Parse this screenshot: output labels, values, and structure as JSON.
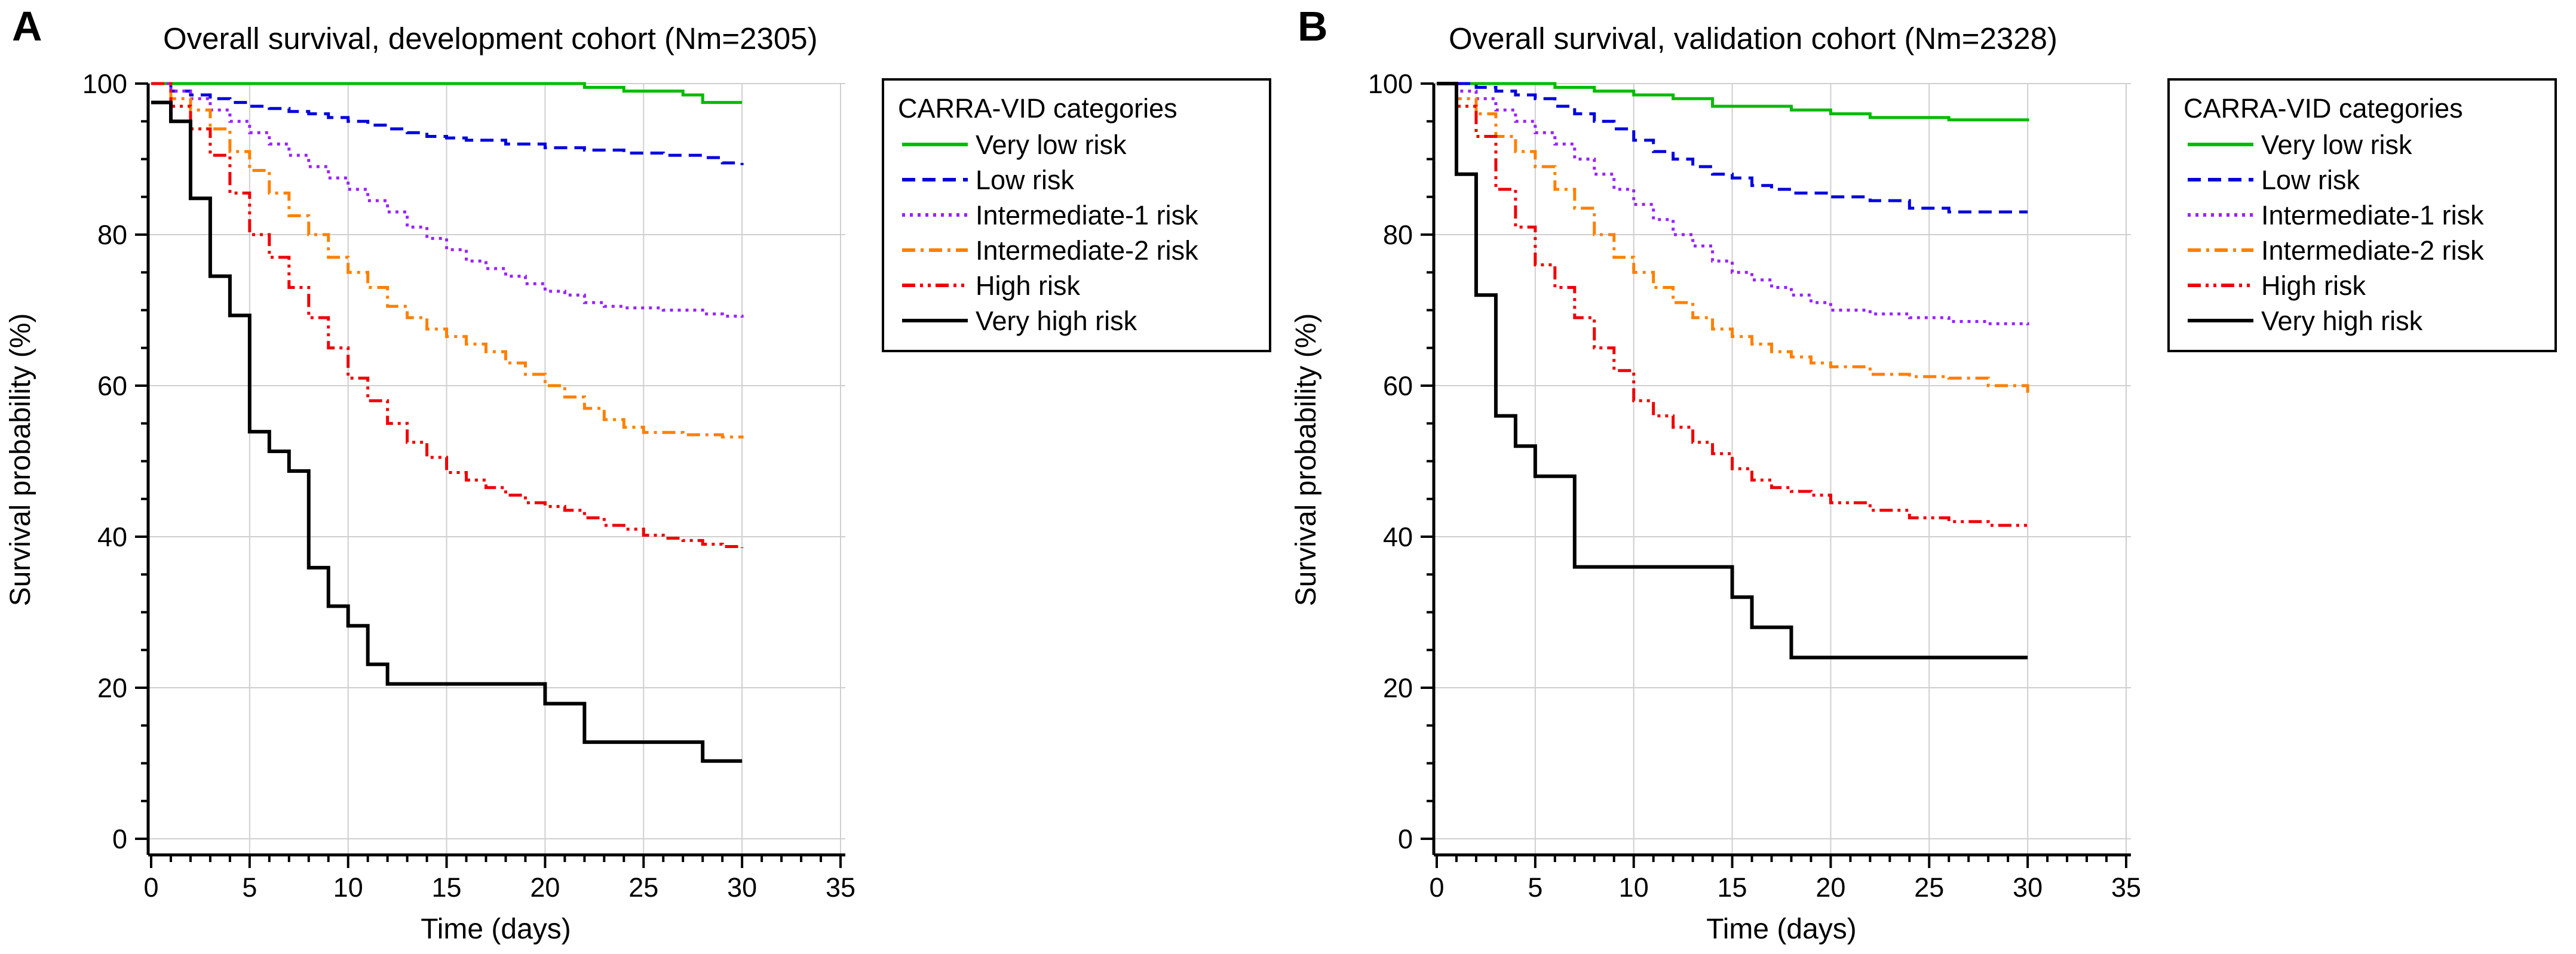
{
  "chart_data": [
    {
      "type": "line",
      "panel_label": "A",
      "title": "Overall survival, development cohort (Nm=2305)",
      "xlabel": "Time (days)",
      "ylabel": "Survival probability (%)",
      "xlim": [
        0,
        35
      ],
      "ylim": [
        0,
        100
      ],
      "xticks": [
        0,
        5,
        10,
        15,
        20,
        25,
        30,
        35
      ],
      "yticks": [
        0,
        20,
        40,
        60,
        80,
        100
      ],
      "grid": true,
      "legend_position": "right",
      "legend_title": "CARRA-VID categories",
      "series": [
        {
          "name": "Very low risk",
          "color": "#00bb00",
          "dash": "solid",
          "x": [
            0,
            21,
            22,
            24,
            27,
            28,
            30
          ],
          "y": [
            100,
            100,
            99.5,
            99,
            98.5,
            97.5,
            97.5
          ]
        },
        {
          "name": "Low risk",
          "color": "#0000dd",
          "dash": "dashed",
          "x": [
            0,
            1,
            2,
            3,
            4,
            5,
            6,
            7,
            8,
            9,
            10,
            11,
            12,
            13,
            14,
            15,
            16,
            18,
            20,
            22,
            24,
            26,
            28,
            29,
            30
          ],
          "y": [
            100,
            99,
            98.5,
            98,
            97.5,
            97,
            96.7,
            96.3,
            96,
            95.5,
            95,
            94.5,
            94,
            93.5,
            93,
            92.8,
            92.5,
            92,
            91.5,
            91.2,
            90.8,
            90.5,
            90.2,
            89.5,
            89.2
          ]
        },
        {
          "name": "Intermediate-1 risk",
          "color": "#9922ff",
          "dash": "dotted",
          "x": [
            0,
            1,
            2,
            3,
            4,
            5,
            6,
            7,
            8,
            9,
            10,
            11,
            12,
            13,
            14,
            15,
            16,
            17,
            18,
            19,
            20,
            21,
            22,
            23,
            24,
            26,
            28,
            29,
            30
          ],
          "y": [
            100,
            99,
            98,
            96.5,
            95,
            93.5,
            92,
            90.5,
            89,
            87.5,
            86,
            84.5,
            83,
            81,
            79.5,
            78,
            76.5,
            75.5,
            74.5,
            73.5,
            72.5,
            72,
            71,
            70.5,
            70.3,
            70,
            69.5,
            69.2,
            69
          ]
        },
        {
          "name": "Intermediate-2 risk",
          "color": "#ff8000",
          "dash": "dashdot",
          "x": [
            0,
            1,
            2,
            3,
            4,
            5,
            6,
            7,
            8,
            9,
            10,
            11,
            12,
            13,
            14,
            15,
            16,
            17,
            18,
            19,
            20,
            21,
            22,
            23,
            24,
            25,
            27,
            29,
            30
          ],
          "y": [
            100,
            98,
            96.5,
            94,
            91,
            88.5,
            85.5,
            82.5,
            80,
            77,
            75,
            73,
            70.5,
            69,
            67.5,
            66.5,
            65.5,
            64.5,
            63,
            61.5,
            60,
            58.5,
            57,
            55.5,
            54.5,
            53.8,
            53.5,
            53.2,
            53
          ]
        },
        {
          "name": "High risk",
          "color": "#ee0000",
          "dash": "dashdotdot",
          "x": [
            0,
            1,
            2,
            3,
            4,
            5,
            6,
            7,
            8,
            9,
            10,
            11,
            12,
            13,
            14,
            15,
            16,
            17,
            18,
            19,
            20,
            21,
            22,
            23,
            24,
            25,
            26,
            27,
            28,
            29,
            30
          ],
          "y": [
            100,
            97,
            94,
            90.5,
            85.5,
            80,
            77,
            73,
            69,
            65,
            61,
            58,
            55,
            52.5,
            50.5,
            48.5,
            47.5,
            46.5,
            45.5,
            44.5,
            44,
            43.5,
            42.5,
            41.5,
            41,
            40.2,
            39.8,
            39.5,
            39,
            38.7,
            38.5
          ]
        },
        {
          "name": "Very high risk",
          "color": "#000000",
          "dash": "solid",
          "x": [
            0,
            1,
            2,
            3,
            4,
            5,
            6,
            7,
            8,
            9,
            10,
            11,
            12,
            20,
            22,
            28,
            30
          ],
          "y": [
            97.5,
            95,
            84.8,
            74.5,
            69.3,
            53.9,
            51.3,
            48.7,
            35.9,
            30.8,
            28.2,
            23.1,
            20.5,
            17.9,
            12.8,
            10.3,
            10.3
          ]
        }
      ]
    },
    {
      "type": "line",
      "panel_label": "B",
      "title": "Overall survival, validation cohort (Nm=2328)",
      "xlabel": "Time (days)",
      "ylabel": "Survival probability (%)",
      "xlim": [
        0,
        35
      ],
      "ylim": [
        0,
        100
      ],
      "xticks": [
        0,
        5,
        10,
        15,
        20,
        25,
        30,
        35
      ],
      "yticks": [
        0,
        20,
        40,
        60,
        80,
        100
      ],
      "grid": true,
      "legend_position": "right",
      "legend_title": "CARRA-VID categories",
      "series": [
        {
          "name": "Very low risk",
          "color": "#00bb00",
          "dash": "solid",
          "x": [
            0,
            6,
            8,
            10,
            12,
            14,
            18,
            20,
            22,
            26,
            30
          ],
          "y": [
            100,
            99.5,
            99,
            98.5,
            98,
            97,
            96.5,
            96,
            95.5,
            95.2,
            95
          ]
        },
        {
          "name": "Low risk",
          "color": "#0000dd",
          "dash": "dashed",
          "x": [
            0,
            2,
            3,
            4,
            5,
            6,
            7,
            8,
            9,
            10,
            11,
            12,
            13,
            14,
            15,
            16,
            17,
            18,
            20,
            22,
            24,
            26,
            28,
            30
          ],
          "y": [
            100,
            99.5,
            99,
            98.5,
            98,
            97,
            96,
            95,
            94,
            92.5,
            91,
            90,
            89,
            88,
            87.5,
            86.5,
            86,
            85.5,
            85,
            84.5,
            83.5,
            83,
            83,
            83
          ]
        },
        {
          "name": "Intermediate-1 risk",
          "color": "#9922ff",
          "dash": "dotted",
          "x": [
            0,
            1,
            2,
            3,
            4,
            5,
            6,
            7,
            8,
            9,
            10,
            11,
            12,
            13,
            14,
            15,
            16,
            17,
            18,
            19,
            20,
            22,
            24,
            26,
            28,
            30
          ],
          "y": [
            100,
            99,
            98,
            96.5,
            95,
            93.5,
            92,
            90,
            88,
            86,
            84,
            82,
            80,
            78.5,
            76.5,
            75,
            74,
            73,
            72,
            71,
            70,
            69.5,
            69,
            68.5,
            68.2,
            68
          ]
        },
        {
          "name": "Intermediate-2 risk",
          "color": "#ff8000",
          "dash": "dashdot",
          "x": [
            0,
            1,
            2,
            3,
            4,
            5,
            6,
            7,
            8,
            9,
            10,
            11,
            12,
            13,
            14,
            15,
            16,
            17,
            18,
            19,
            20,
            22,
            24,
            26,
            28,
            30
          ],
          "y": [
            100,
            98,
            96,
            93,
            91,
            89,
            86,
            83.5,
            80,
            77,
            75,
            73,
            71,
            69,
            67.5,
            66.5,
            65.5,
            64.5,
            63.8,
            63,
            62.5,
            61.5,
            61.2,
            61,
            60,
            59
          ]
        },
        {
          "name": "High risk",
          "color": "#ee0000",
          "dash": "dashdotdot",
          "x": [
            0,
            1,
            2,
            3,
            4,
            5,
            6,
            7,
            8,
            9,
            10,
            11,
            12,
            13,
            14,
            15,
            16,
            17,
            18,
            19,
            20,
            22,
            24,
            26,
            28,
            30
          ],
          "y": [
            100,
            97,
            93,
            86,
            81,
            76,
            73,
            69,
            65,
            62,
            58,
            56,
            54.5,
            52.5,
            51,
            49,
            47.5,
            46.5,
            46,
            45.5,
            44.5,
            43.5,
            42.5,
            42,
            41.5,
            41
          ]
        },
        {
          "name": "Very high risk",
          "color": "#000000",
          "dash": "solid",
          "x": [
            0,
            1,
            2,
            3,
            4,
            5,
            6,
            7,
            8,
            15,
            16,
            18,
            30
          ],
          "y": [
            100,
            88,
            72,
            56,
            52,
            48,
            48,
            36,
            36,
            32,
            28,
            24,
            24
          ]
        }
      ]
    }
  ]
}
